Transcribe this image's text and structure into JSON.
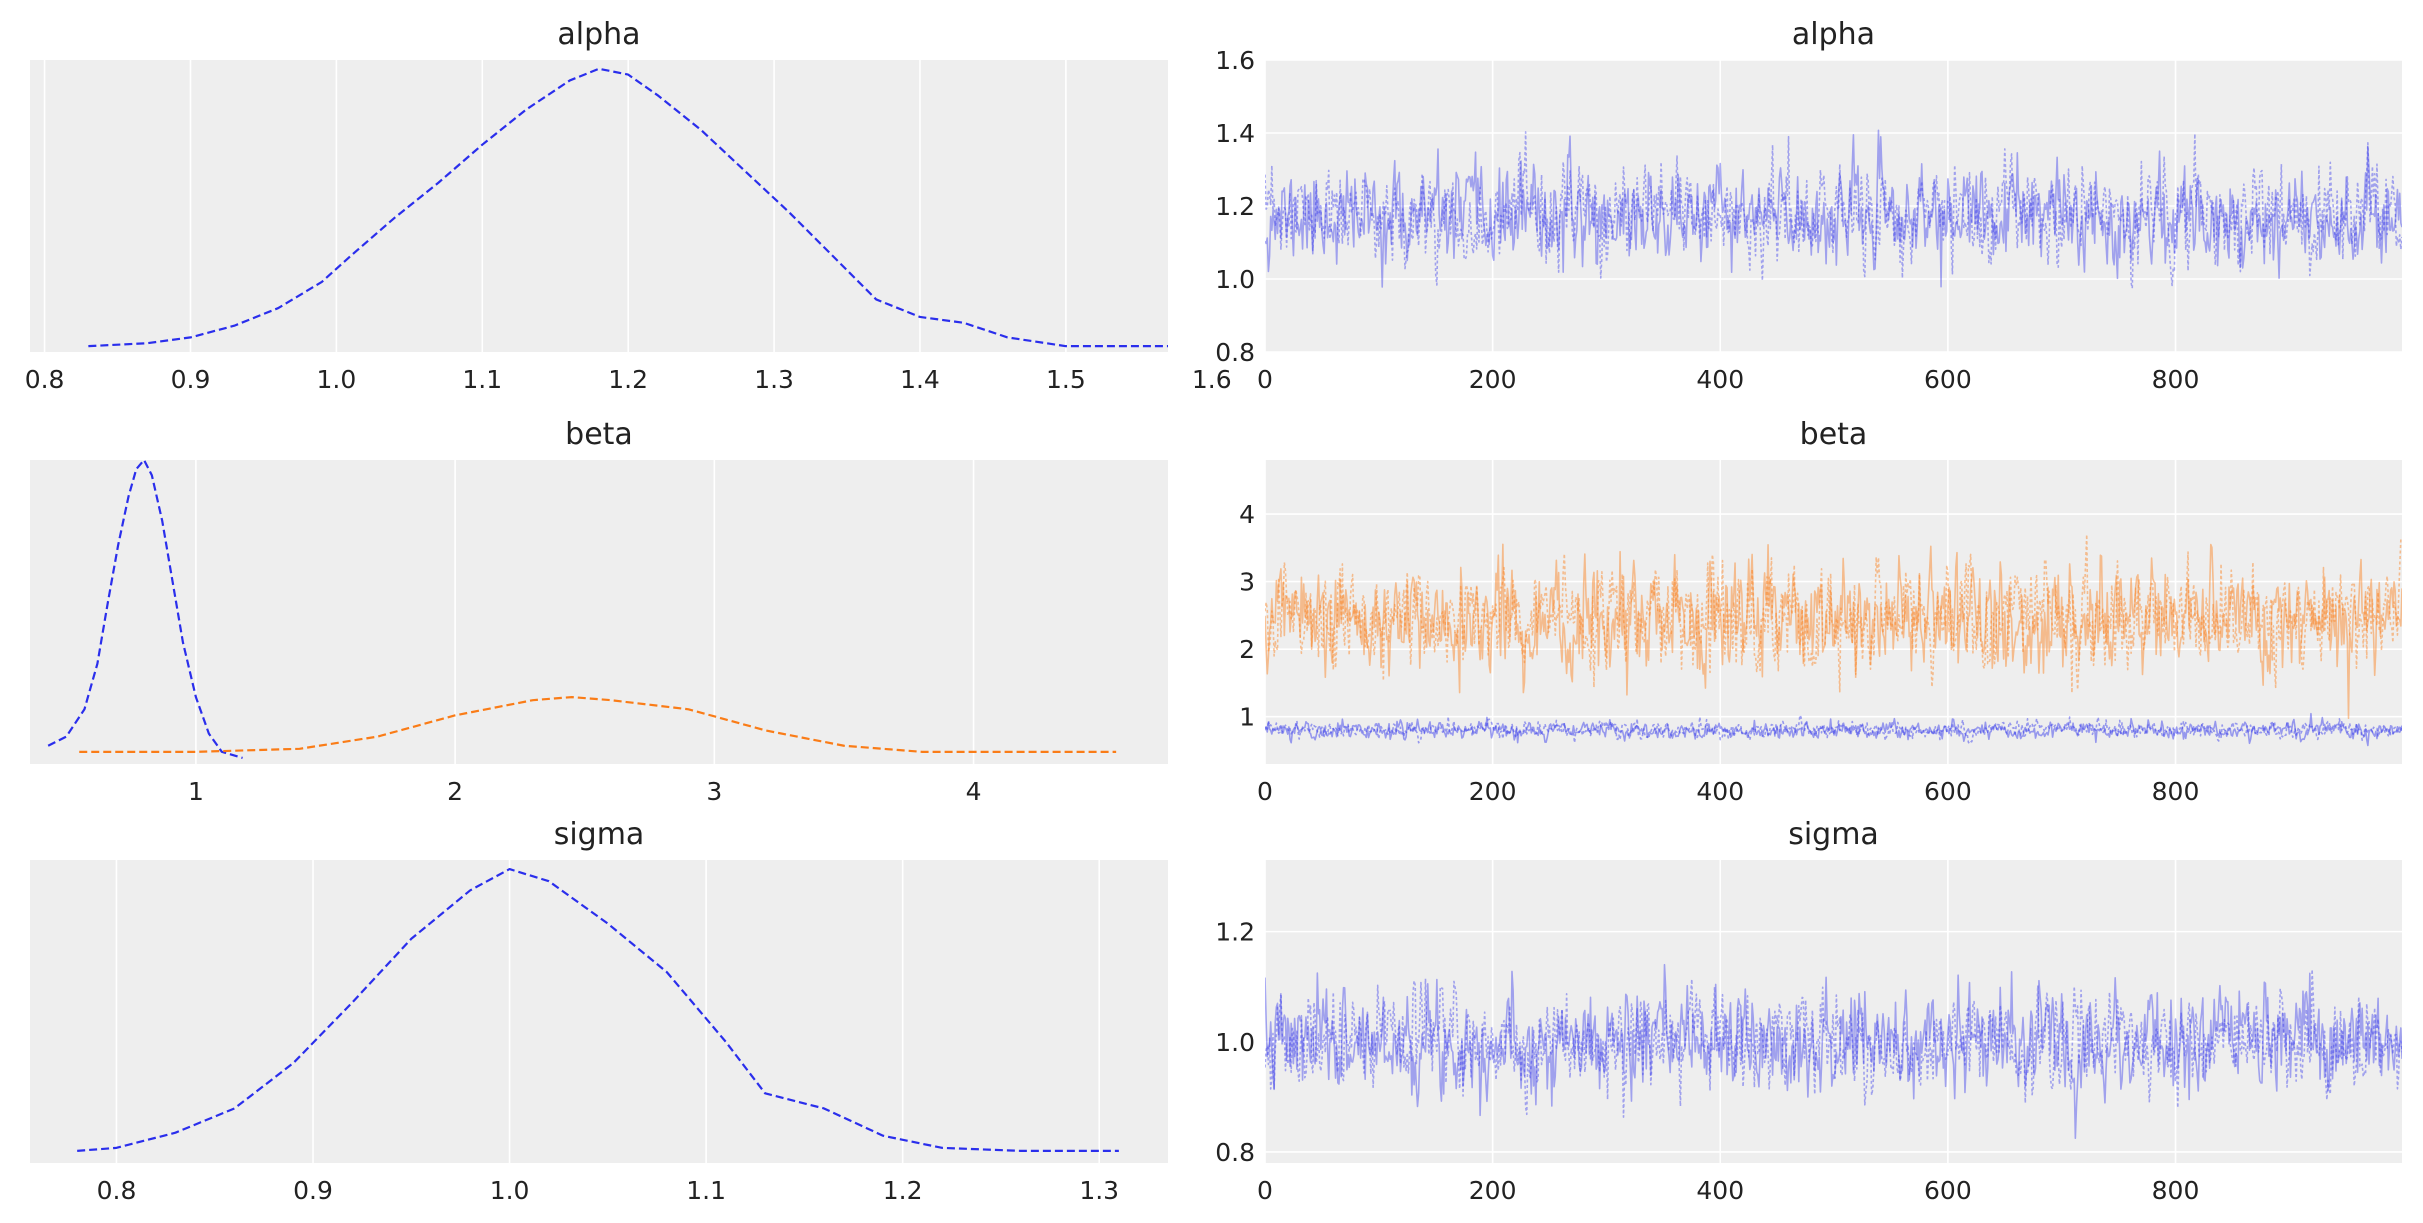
{
  "figure": {
    "background": "#ffffff",
    "panel_background": "#eeeeee",
    "grid_color": "#ffffff",
    "series_colors": [
      "#2a2eec",
      "#fa7c17"
    ]
  },
  "chart_data": [
    {
      "id": "alpha-posterior",
      "type": "line",
      "title": "alpha",
      "xlabel": "",
      "ylabel": "",
      "xlim": [
        0.79,
        1.57
      ],
      "ylim": [
        0,
        1
      ],
      "xticks": [
        0.8,
        0.9,
        1.0,
        1.1,
        1.2,
        1.3,
        1.4,
        1.5,
        1.6
      ],
      "xtick_labels": [
        "0.8",
        "0.9",
        "1.0",
        "1.1",
        "1.2",
        "1.3",
        "1.4",
        "1.5",
        "1.6"
      ],
      "yticks": [],
      "grid": "vertical",
      "series": [
        {
          "color": "#2a2eec",
          "dash": "dashed",
          "x": [
            0.83,
            0.87,
            0.9,
            0.93,
            0.96,
            0.99,
            1.01,
            1.04,
            1.07,
            1.1,
            1.13,
            1.16,
            1.18,
            1.2,
            1.22,
            1.25,
            1.28,
            1.31,
            1.34,
            1.37,
            1.4,
            1.43,
            1.46,
            1.5,
            1.57
          ],
          "y": [
            0.02,
            0.03,
            0.05,
            0.09,
            0.15,
            0.24,
            0.33,
            0.46,
            0.58,
            0.71,
            0.83,
            0.93,
            0.97,
            0.95,
            0.88,
            0.76,
            0.62,
            0.48,
            0.33,
            0.18,
            0.12,
            0.1,
            0.05,
            0.02,
            0.02
          ]
        }
      ]
    },
    {
      "id": "alpha-trace",
      "type": "line",
      "title": "alpha",
      "xlabel": "",
      "ylabel": "",
      "xlim": [
        0,
        999
      ],
      "ylim": [
        0.8,
        1.6
      ],
      "xticks": [
        0,
        200,
        400,
        600,
        800
      ],
      "xtick_labels": [
        "0",
        "200",
        "400",
        "600",
        "800"
      ],
      "yticks": [
        0.8,
        1.0,
        1.2,
        1.4,
        1.6
      ],
      "ytick_labels": [
        "0.8",
        "1.0",
        "1.2",
        "1.4",
        "1.6"
      ],
      "grid": "both",
      "series": [
        {
          "color": "#2a2eec",
          "opacity": 0.4,
          "dash": "solid",
          "n_draws": 1000,
          "center": 1.17,
          "spread": 0.09,
          "seed": 11
        },
        {
          "color": "#2a2eec",
          "opacity": 0.4,
          "dash": "dotted",
          "n_draws": 1000,
          "center": 1.17,
          "spread": 0.09,
          "seed": 23
        }
      ]
    },
    {
      "id": "beta-posterior",
      "type": "line",
      "title": "beta",
      "xlabel": "",
      "ylabel": "",
      "xlim": [
        0.36,
        4.75
      ],
      "ylim": [
        0,
        1
      ],
      "xticks": [
        1,
        2,
        3,
        4
      ],
      "xtick_labels": [
        "1",
        "2",
        "3",
        "4"
      ],
      "yticks": [],
      "grid": "vertical",
      "series": [
        {
          "color": "#2a2eec",
          "dash": "dashed",
          "x": [
            0.43,
            0.5,
            0.57,
            0.62,
            0.66,
            0.7,
            0.74,
            0.77,
            0.8,
            0.83,
            0.87,
            0.91,
            0.95,
            1.0,
            1.05,
            1.1,
            1.18
          ],
          "y": [
            0.06,
            0.09,
            0.18,
            0.33,
            0.53,
            0.72,
            0.88,
            0.97,
            1.0,
            0.95,
            0.8,
            0.6,
            0.4,
            0.22,
            0.1,
            0.04,
            0.02
          ]
        },
        {
          "color": "#fa7c17",
          "dash": "dashed",
          "x": [
            0.55,
            1.0,
            1.4,
            1.7,
            2.0,
            2.3,
            2.45,
            2.6,
            2.9,
            3.2,
            3.5,
            3.8,
            4.2,
            4.55
          ],
          "y": [
            0.04,
            0.04,
            0.05,
            0.09,
            0.16,
            0.21,
            0.22,
            0.21,
            0.18,
            0.11,
            0.06,
            0.04,
            0.04,
            0.04
          ]
        }
      ]
    },
    {
      "id": "beta-trace",
      "type": "line",
      "title": "beta",
      "xlabel": "",
      "ylabel": "",
      "xlim": [
        0,
        999
      ],
      "ylim": [
        0.3,
        4.8
      ],
      "xticks": [
        0,
        200,
        400,
        600,
        800
      ],
      "xtick_labels": [
        "0",
        "200",
        "400",
        "600",
        "800"
      ],
      "yticks": [
        1,
        2,
        3,
        4
      ],
      "ytick_labels": [
        "1",
        "2",
        "3",
        "4"
      ],
      "grid": "both",
      "series": [
        {
          "color": "#fa7c17",
          "opacity": 0.45,
          "dash": "solid",
          "n_draws": 1000,
          "center": 2.45,
          "spread": 0.55,
          "seed": 5
        },
        {
          "color": "#fa7c17",
          "opacity": 0.45,
          "dash": "dotted",
          "n_draws": 1000,
          "center": 2.45,
          "spread": 0.55,
          "seed": 17
        },
        {
          "color": "#2a2eec",
          "opacity": 0.45,
          "dash": "solid",
          "n_draws": 1000,
          "center": 0.8,
          "spread": 0.09,
          "seed": 31
        },
        {
          "color": "#2a2eec",
          "opacity": 0.45,
          "dash": "dotted",
          "n_draws": 1000,
          "center": 0.8,
          "spread": 0.09,
          "seed": 43
        }
      ]
    },
    {
      "id": "sigma-posterior",
      "type": "line",
      "title": "sigma",
      "xlabel": "",
      "ylabel": "",
      "xlim": [
        0.756,
        1.335
      ],
      "ylim": [
        0,
        1
      ],
      "xticks": [
        0.8,
        0.9,
        1.0,
        1.1,
        1.2,
        1.3
      ],
      "xtick_labels": [
        "0.8",
        "0.9",
        "1.0",
        "1.1",
        "1.2",
        "1.3"
      ],
      "yticks": [],
      "grid": "vertical",
      "series": [
        {
          "color": "#2a2eec",
          "dash": "dashed",
          "x": [
            0.78,
            0.8,
            0.83,
            0.86,
            0.89,
            0.92,
            0.95,
            0.98,
            1.0,
            1.02,
            1.05,
            1.08,
            1.11,
            1.13,
            1.16,
            1.19,
            1.22,
            1.26,
            1.31
          ],
          "y": [
            0.04,
            0.05,
            0.1,
            0.18,
            0.33,
            0.53,
            0.74,
            0.9,
            0.97,
            0.93,
            0.79,
            0.63,
            0.4,
            0.23,
            0.18,
            0.09,
            0.05,
            0.04,
            0.04
          ]
        }
      ]
    },
    {
      "id": "sigma-trace",
      "type": "line",
      "title": "sigma",
      "xlabel": "",
      "ylabel": "",
      "xlim": [
        0,
        999
      ],
      "ylim": [
        0.78,
        1.33
      ],
      "xticks": [
        0,
        200,
        400,
        600,
        800
      ],
      "xtick_labels": [
        "0",
        "200",
        "400",
        "600",
        "800"
      ],
      "yticks": [
        0.8,
        1.0,
        1.2
      ],
      "ytick_labels": [
        "0.8",
        "1.0",
        "1.2"
      ],
      "grid": "both",
      "series": [
        {
          "color": "#2a2eec",
          "opacity": 0.4,
          "dash": "solid",
          "n_draws": 1000,
          "center": 1.0,
          "spread": 0.065,
          "seed": 7
        },
        {
          "color": "#2a2eec",
          "opacity": 0.4,
          "dash": "dotted",
          "n_draws": 1000,
          "center": 1.0,
          "spread": 0.065,
          "seed": 19
        }
      ]
    }
  ]
}
